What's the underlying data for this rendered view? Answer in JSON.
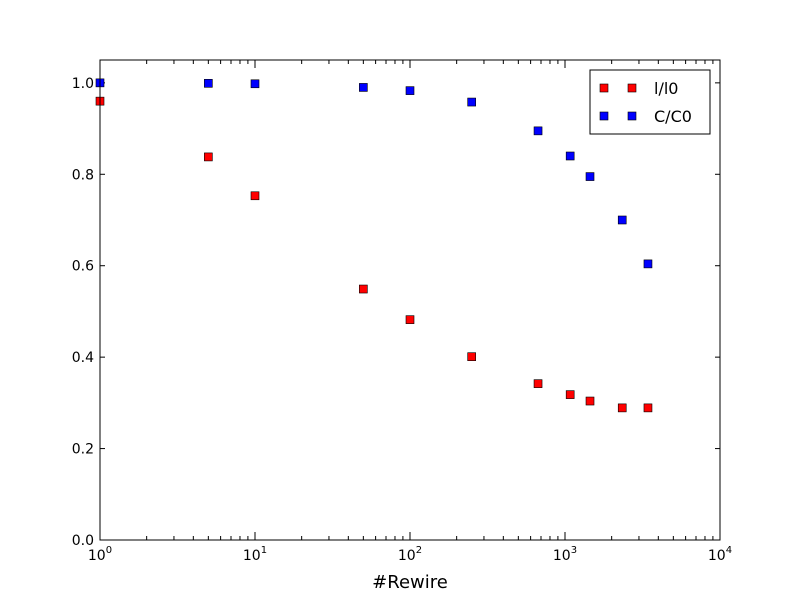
{
  "chart_data": {
    "type": "scatter",
    "title": "",
    "xlabel": "#Rewire",
    "ylabel": "",
    "xscale": "log",
    "xlim": [
      1,
      10000
    ],
    "ylim": [
      0,
      1.05
    ],
    "grid": false,
    "legend_position": "top-right",
    "x_ticks": [
      {
        "value": 1,
        "base": "10",
        "exp": "0"
      },
      {
        "value": 10,
        "base": "10",
        "exp": "1"
      },
      {
        "value": 100,
        "base": "10",
        "exp": "2"
      },
      {
        "value": 1000,
        "base": "10",
        "exp": "3"
      },
      {
        "value": 10000,
        "base": "10",
        "exp": "4"
      }
    ],
    "y_ticks": [
      {
        "value": 0.0,
        "label": "0.0"
      },
      {
        "value": 0.2,
        "label": "0.2"
      },
      {
        "value": 0.4,
        "label": "0.4"
      },
      {
        "value": 0.6,
        "label": "0.6"
      },
      {
        "value": 0.8,
        "label": "0.8"
      },
      {
        "value": 1.0,
        "label": "1.0"
      }
    ],
    "series": [
      {
        "name": "l/l0",
        "color": "#ff0000",
        "marker": "square",
        "x": [
          1,
          5,
          10,
          50,
          100,
          250,
          670,
          1080,
          1450,
          2340,
          3430
        ],
        "y": [
          0.96,
          0.838,
          0.753,
          0.549,
          0.482,
          0.401,
          0.342,
          0.318,
          0.304,
          0.289,
          0.289
        ]
      },
      {
        "name": "C/C0",
        "color": "#0000ff",
        "marker": "square",
        "x": [
          1,
          5,
          10,
          50,
          100,
          250,
          670,
          1080,
          1450,
          2340,
          3430
        ],
        "y": [
          1.0,
          0.999,
          0.998,
          0.99,
          0.983,
          0.958,
          0.895,
          0.84,
          0.795,
          0.7,
          0.604
        ]
      }
    ]
  }
}
